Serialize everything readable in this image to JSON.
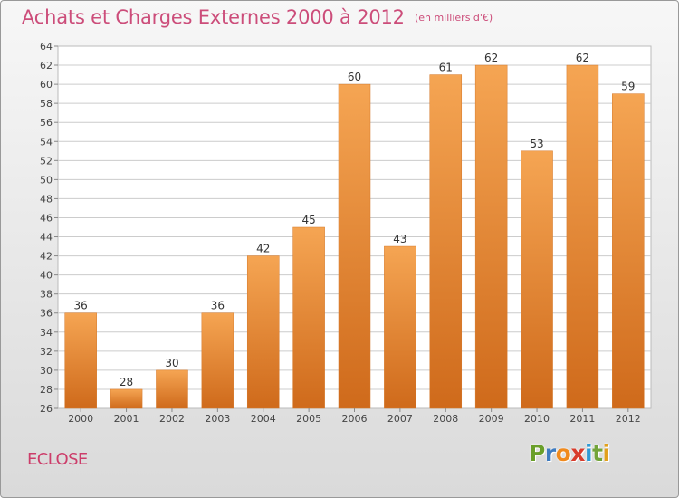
{
  "header": {
    "title": "Achats et Charges Externes 2000 à 2012",
    "subtitle": "(en milliers d'€)"
  },
  "commune": "ECLOSE",
  "logo": {
    "text": "Proxiti",
    "colors": [
      "#6a9f2a",
      "#3f7cc0",
      "#f08a1d",
      "#d83c2c",
      "#2f9bd6",
      "#73a43a",
      "#e2a01c"
    ]
  },
  "colors": {
    "bar_top": "#f5a553",
    "bar_bottom": "#cf6a1b",
    "title": "#cc4d7a",
    "grid": "#cccccc"
  },
  "chart_data": {
    "type": "bar",
    "title": "Achats et Charges Externes 2000 à 2012",
    "subtitle": "(en milliers d'€)",
    "xlabel": "",
    "ylabel": "",
    "categories": [
      "2000",
      "2001",
      "2002",
      "2003",
      "2004",
      "2005",
      "2006",
      "2007",
      "2008",
      "2009",
      "2010",
      "2011",
      "2012"
    ],
    "values": [
      36,
      28,
      30,
      36,
      42,
      45,
      60,
      43,
      61,
      62,
      53,
      62,
      59
    ],
    "ylim": [
      26,
      64
    ],
    "yticks": [
      26,
      28,
      30,
      32,
      34,
      36,
      38,
      40,
      42,
      44,
      46,
      48,
      50,
      52,
      54,
      56,
      58,
      60,
      62,
      64
    ],
    "grid": true,
    "data_labels": true,
    "legend": "none"
  }
}
